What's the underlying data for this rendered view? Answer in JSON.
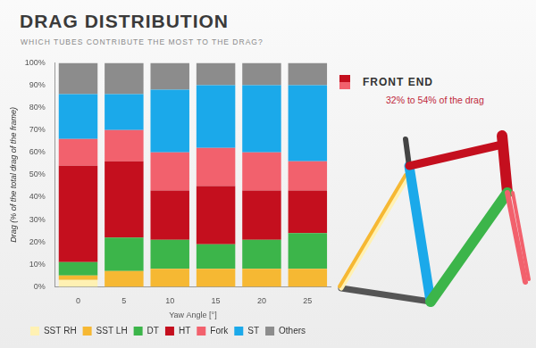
{
  "chart_data": {
    "type": "bar",
    "title": "DRAG DISTRIBUTION",
    "subtitle": "WHICH TUBES CONTRIBUTE THE MOST TO THE DRAG?",
    "x_label": "Yaw Angle [°]",
    "y_label": "Drag (% of the total drag of the frame)",
    "categories": [
      0,
      5,
      10,
      15,
      20,
      25
    ],
    "series": [
      {
        "name": "SST RH",
        "color": "#fff1b3",
        "values": [
          3,
          0,
          0,
          0,
          0,
          0
        ]
      },
      {
        "name": "SST LH",
        "color": "#f6b833",
        "values": [
          2,
          7,
          8,
          8,
          8,
          8
        ]
      },
      {
        "name": "DT",
        "color": "#3cb54a",
        "values": [
          6,
          15,
          13,
          11,
          13,
          16
        ]
      },
      {
        "name": "HT",
        "color": "#c40f1e",
        "values": [
          43,
          34,
          22,
          26,
          22,
          19
        ]
      },
      {
        "name": "Fork",
        "color": "#f2616d",
        "values": [
          12,
          14,
          17,
          17,
          17,
          13
        ]
      },
      {
        "name": "ST",
        "color": "#1ba9ea",
        "values": [
          20,
          16,
          28,
          28,
          30,
          34
        ]
      },
      {
        "name": "Others",
        "color": "#8c8c8c",
        "values": [
          14,
          14,
          12,
          10,
          10,
          10
        ]
      }
    ],
    "stacked": true,
    "ylim": [
      0,
      100
    ],
    "yticks": [
      {
        "value": 0,
        "label": "0%"
      },
      {
        "value": 10,
        "label": "10%"
      },
      {
        "value": 20,
        "label": "20%"
      },
      {
        "value": 30,
        "label": "30%"
      },
      {
        "value": 40,
        "label": "40%"
      },
      {
        "value": 50,
        "label": "50%"
      },
      {
        "value": 60,
        "label": "60%"
      },
      {
        "value": 70,
        "label": "70%"
      },
      {
        "value": 80,
        "label": "80%"
      },
      {
        "value": 90,
        "label": "90%"
      },
      {
        "value": 100,
        "label": "100%"
      }
    ],
    "grid": false,
    "legend": "bottom",
    "annotations": [
      {
        "text": "FRONT END",
        "colors": [
          "#c40f1e",
          "#f2616d"
        ]
      },
      {
        "text": "32% to 54% of the drag"
      }
    ]
  }
}
